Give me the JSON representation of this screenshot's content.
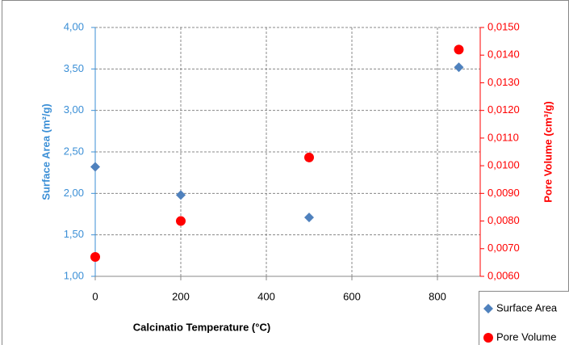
{
  "chart_data": {
    "type": "scatter",
    "x_label": "Calcinatio Temperature (°C)",
    "y_label": "Surface Area (m²/g)",
    "y2_label": "Pore Volume (cm³/g)",
    "xlim": [
      0,
      900
    ],
    "xticks": [
      0,
      200,
      400,
      600,
      800
    ],
    "ylim": [
      1,
      4
    ],
    "yticks": [
      {
        "value": 1,
        "label": "1,00"
      },
      {
        "value": 1.5,
        "label": "1,50"
      },
      {
        "value": 2,
        "label": "2,00"
      },
      {
        "value": 2.5,
        "label": "2,50"
      },
      {
        "value": 3,
        "label": "3,00"
      },
      {
        "value": 3.5,
        "label": "3,50"
      },
      {
        "value": 4,
        "label": "4,00"
      }
    ],
    "y2lim": [
      0.006,
      0.015
    ],
    "y2ticks": [
      {
        "value": 0.006,
        "label": "0,0060"
      },
      {
        "value": 0.007,
        "label": "0,0070"
      },
      {
        "value": 0.008,
        "label": "0,0080"
      },
      {
        "value": 0.009,
        "label": "0,0090"
      },
      {
        "value": 0.01,
        "label": "0,0100"
      },
      {
        "value": 0.011,
        "label": "0,0110"
      },
      {
        "value": 0.012,
        "label": "0,0120"
      },
      {
        "value": 0.013,
        "label": "0,0130"
      },
      {
        "value": 0.014,
        "label": "0,0140"
      },
      {
        "value": 0.015,
        "label": "0,0150"
      }
    ],
    "grid": true,
    "legend": "bottom-right",
    "y_color": "#3b8fd6",
    "y2_color": "#ff0000",
    "series": [
      {
        "name": "Surface Area",
        "color": "#4f81bd",
        "marker": "diamond",
        "x": [
          0,
          200,
          500,
          850
        ],
        "values": [
          2.32,
          1.98,
          1.71,
          3.52
        ]
      },
      {
        "name": "Pore Volume",
        "color": "#ff0000",
        "marker": "circle",
        "axis": "y2",
        "x": [
          0,
          200,
          500,
          850
        ],
        "values": [
          0.0067,
          0.008,
          0.0103,
          0.0142
        ]
      }
    ]
  }
}
